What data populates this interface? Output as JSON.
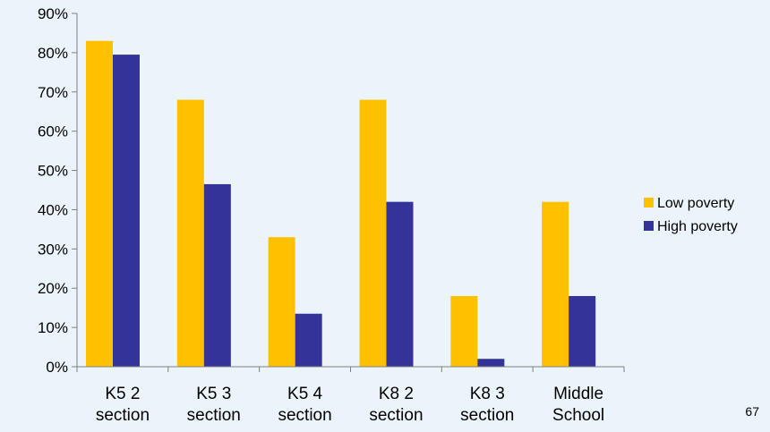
{
  "page_number": "67",
  "colors": {
    "low_poverty": "#FFC000",
    "high_poverty": "#333399",
    "axis": "#808080"
  },
  "chart_data": {
    "type": "bar",
    "categories": [
      [
        "K5 2",
        "section"
      ],
      [
        "K5 3",
        "section"
      ],
      [
        "K5 4",
        "section"
      ],
      [
        "K8 2",
        "section"
      ],
      [
        "K8 3",
        "section"
      ],
      [
        "Middle",
        "School"
      ]
    ],
    "series": [
      {
        "name": "Low poverty",
        "values": [
          83,
          68,
          33,
          68,
          18,
          42
        ]
      },
      {
        "name": "High poverty",
        "values": [
          79.5,
          46.5,
          13.5,
          42,
          2,
          18
        ]
      }
    ],
    "ylim": [
      0,
      90
    ],
    "yticks": [
      "0%",
      "10%",
      "20%",
      "30%",
      "40%",
      "50%",
      "60%",
      "70%",
      "80%",
      "90%"
    ],
    "legend_position": "right",
    "grid": false
  }
}
